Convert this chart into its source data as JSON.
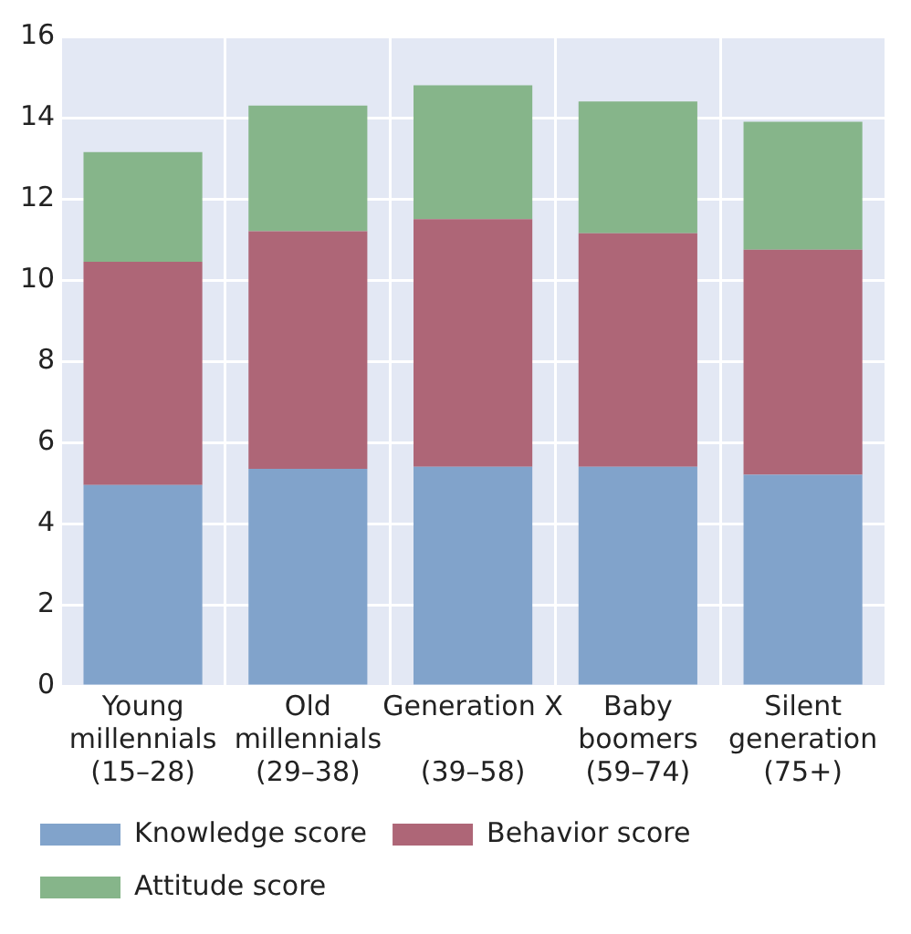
{
  "chart_data": {
    "type": "bar",
    "stacked": true,
    "categories": [
      "Young\nmillennials\n(15–28)",
      "Old\nmillennials\n(29–38)",
      "Generation X\n\n(39–58)",
      "Baby\nboomers\n(59–74)",
      "Silent\ngeneration\n(75+)"
    ],
    "series": [
      {
        "name": "Knowledge score",
        "color": "#81a3cb",
        "values": [
          4.95,
          5.35,
          5.4,
          5.4,
          5.2
        ]
      },
      {
        "name": "Behavior score",
        "color": "#ae6677",
        "values": [
          5.5,
          5.85,
          6.1,
          5.75,
          5.55
        ]
      },
      {
        "name": "Attitude score",
        "color": "#86b58a",
        "values": [
          2.7,
          3.1,
          3.3,
          3.25,
          3.15
        ]
      }
    ],
    "ylim": [
      0,
      16
    ],
    "yticks": [
      0,
      2,
      4,
      6,
      8,
      10,
      12,
      14,
      16
    ],
    "grid": true,
    "legend": "bottom"
  }
}
